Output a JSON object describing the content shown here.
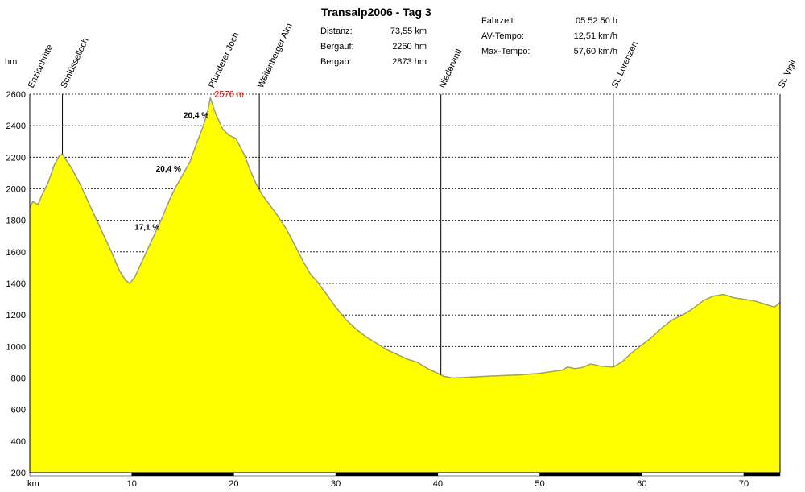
{
  "title": "Transalp2006 - Tag 3",
  "stats_left": [
    {
      "label": "Distanz:",
      "value": "73,55 km"
    },
    {
      "label": "Bergauf:",
      "value": "2260 hm"
    },
    {
      "label": "Bergab:",
      "value": "2873 hm"
    }
  ],
  "stats_right": [
    {
      "label": "Fahrzeit:",
      "value": "05:52:50 h"
    },
    {
      "label": "AV-Tempo:",
      "value": "12,51 km/h"
    },
    {
      "label": "Max-Tempo:",
      "value": "57,60 km/h"
    }
  ],
  "chart_data": {
    "type": "area",
    "xlabel": "km",
    "ylabel": "hm",
    "xlim": [
      0,
      73.55
    ],
    "ylim": [
      200,
      2600
    ],
    "x_ticks": [
      10,
      20,
      30,
      40,
      50,
      60,
      70
    ],
    "y_ticks": [
      200,
      400,
      600,
      800,
      1000,
      1200,
      1400,
      1600,
      1800,
      2000,
      2200,
      2400,
      2600
    ],
    "grid": true,
    "fill_color": "#ffff00",
    "line_color": "#999999",
    "points": [
      [
        0,
        1880
      ],
      [
        0.3,
        1920
      ],
      [
        0.8,
        1900
      ],
      [
        1.2,
        1960
      ],
      [
        1.8,
        2040
      ],
      [
        2.4,
        2150
      ],
      [
        2.9,
        2210
      ],
      [
        3.2,
        2220
      ],
      [
        3.6,
        2180
      ],
      [
        4.2,
        2120
      ],
      [
        5,
        2020
      ],
      [
        6,
        1880
      ],
      [
        7,
        1740
      ],
      [
        8,
        1600
      ],
      [
        8.8,
        1480
      ],
      [
        9.4,
        1420
      ],
      [
        9.8,
        1400
      ],
      [
        10.3,
        1440
      ],
      [
        11,
        1540
      ],
      [
        12,
        1680
      ],
      [
        13,
        1820
      ],
      [
        13.7,
        1930
      ],
      [
        14.3,
        2010
      ],
      [
        15,
        2090
      ],
      [
        15.7,
        2170
      ],
      [
        16.3,
        2280
      ],
      [
        16.9,
        2380
      ],
      [
        17.4,
        2480
      ],
      [
        17.7,
        2576
      ],
      [
        18.2,
        2480
      ],
      [
        18.9,
        2380
      ],
      [
        19.5,
        2340
      ],
      [
        20.2,
        2320
      ],
      [
        21,
        2220
      ],
      [
        21.6,
        2120
      ],
      [
        22.2,
        2030
      ],
      [
        22.8,
        1960
      ],
      [
        23.5,
        1900
      ],
      [
        24.3,
        1830
      ],
      [
        25.2,
        1740
      ],
      [
        26,
        1640
      ],
      [
        26.8,
        1540
      ],
      [
        27.5,
        1460
      ],
      [
        28.2,
        1410
      ],
      [
        29,
        1340
      ],
      [
        30,
        1250
      ],
      [
        31,
        1170
      ],
      [
        32,
        1110
      ],
      [
        33,
        1060
      ],
      [
        34,
        1020
      ],
      [
        35,
        980
      ],
      [
        36,
        950
      ],
      [
        37,
        920
      ],
      [
        38,
        900
      ],
      [
        39,
        860
      ],
      [
        40,
        830
      ],
      [
        40.6,
        810
      ],
      [
        41.5,
        800
      ],
      [
        43,
        805
      ],
      [
        44.5,
        810
      ],
      [
        46,
        815
      ],
      [
        48,
        820
      ],
      [
        50,
        830
      ],
      [
        51,
        840
      ],
      [
        52.2,
        850
      ],
      [
        52.7,
        870
      ],
      [
        53.5,
        860
      ],
      [
        54.3,
        870
      ],
      [
        55,
        890
      ],
      [
        56,
        875
      ],
      [
        57.2,
        870
      ],
      [
        58,
        900
      ],
      [
        59,
        960
      ],
      [
        60,
        1010
      ],
      [
        61,
        1060
      ],
      [
        62,
        1120
      ],
      [
        63,
        1170
      ],
      [
        64,
        1200
      ],
      [
        65,
        1240
      ],
      [
        66,
        1290
      ],
      [
        67,
        1320
      ],
      [
        68,
        1330
      ],
      [
        69,
        1310
      ],
      [
        70,
        1300
      ],
      [
        71,
        1290
      ],
      [
        72,
        1270
      ],
      [
        73,
        1250
      ],
      [
        73.55,
        1280
      ]
    ],
    "peak_label": {
      "x": 17.7,
      "y": 2576,
      "text": "2576 m"
    },
    "annotations": [
      {
        "text": "20,4 %",
        "x": 16.3,
        "y": 2450
      },
      {
        "text": "20,4 %",
        "x": 13.6,
        "y": 2110
      },
      {
        "text": "17,1 %",
        "x": 11.5,
        "y": 1740
      }
    ],
    "waypoints": [
      {
        "name": "Enzianhütte",
        "km": 0,
        "line": false
      },
      {
        "name": "Schlüsselloch",
        "km": 3.2,
        "line": true
      },
      {
        "name": "Pfunderer Joch",
        "km": 17.7,
        "line": false
      },
      {
        "name": "Weitenberger Alm",
        "km": 22.5,
        "line": true
      },
      {
        "name": "Niedervintl",
        "km": 40.3,
        "line": true
      },
      {
        "name": "St. Lorenzen",
        "km": 57.2,
        "line": true
      },
      {
        "name": "St. Vigil",
        "km": 73.55,
        "line": false
      }
    ]
  }
}
